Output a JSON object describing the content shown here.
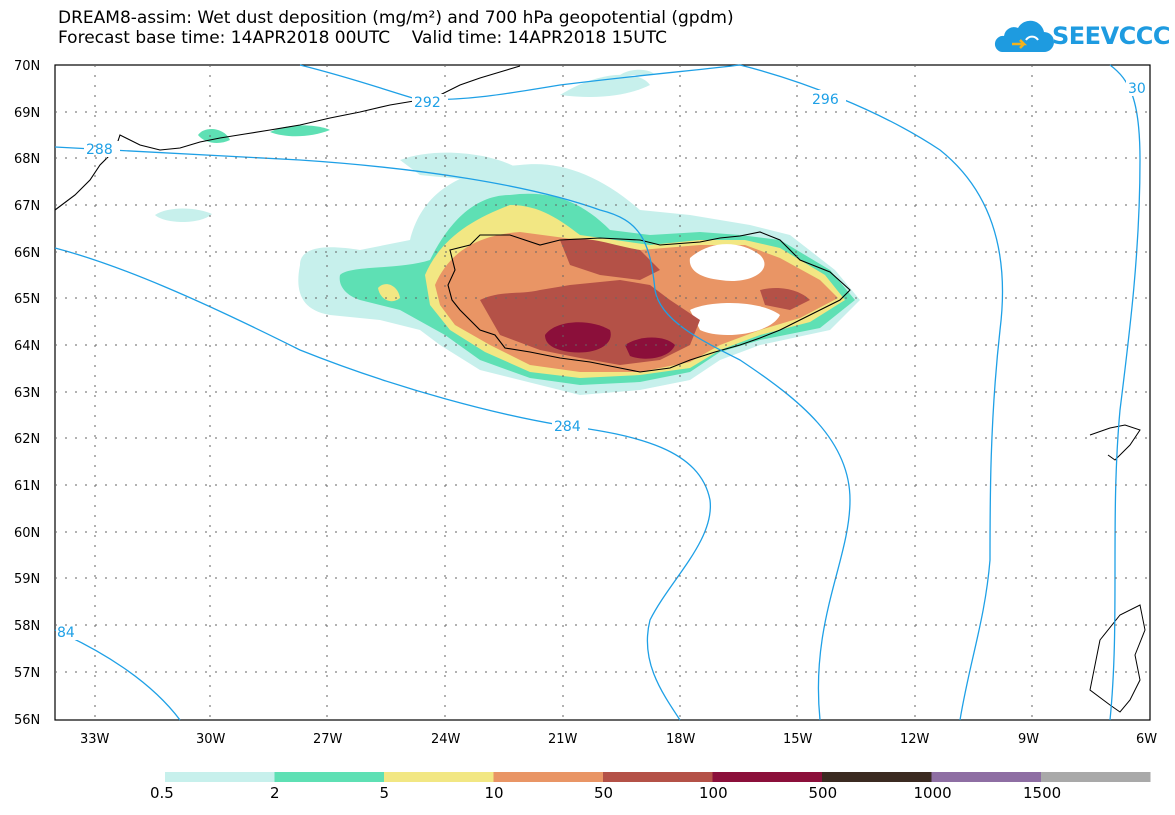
{
  "title": {
    "line1": "DREAM8-assim: Wet dust deposition (mg/m²) and 700 hPa geopotential (gpdm)",
    "line2": "Forecast base time: 14APR2018 00UTC    Valid time: 14APR2018 15UTC"
  },
  "logo": {
    "text": "SEEVCCC",
    "icon": "cloud-icon"
  },
  "map": {
    "lat_labels": [
      "70N",
      "69N",
      "68N",
      "67N",
      "66N",
      "65N",
      "64N",
      "63N",
      "62N",
      "61N",
      "60N",
      "59N",
      "58N",
      "57N",
      "56N"
    ],
    "lon_labels": [
      "33W",
      "30W",
      "27W",
      "24W",
      "21W",
      "18W",
      "15W",
      "12W",
      "9W",
      "6W"
    ],
    "contour_labels": [
      "292",
      "296",
      "288",
      "284",
      "84",
      "30"
    ],
    "contour_color": "#1ea0e6"
  },
  "legend": {
    "bins": [
      {
        "label": "0.5",
        "color": "#c7f0ec"
      },
      {
        "label": "2",
        "color": "#5ee0b4"
      },
      {
        "label": "5",
        "color": "#f2e783"
      },
      {
        "label": "10",
        "color": "#e99565"
      },
      {
        "label": "50",
        "color": "#b45147"
      },
      {
        "label": "100",
        "color": "#8b0f3a"
      },
      {
        "label": "500",
        "color": "#3b2a21"
      },
      {
        "label": "1000",
        "color": "#8e6ea3"
      },
      {
        "label": "1500",
        "color": "#a9a9a9"
      }
    ]
  }
}
